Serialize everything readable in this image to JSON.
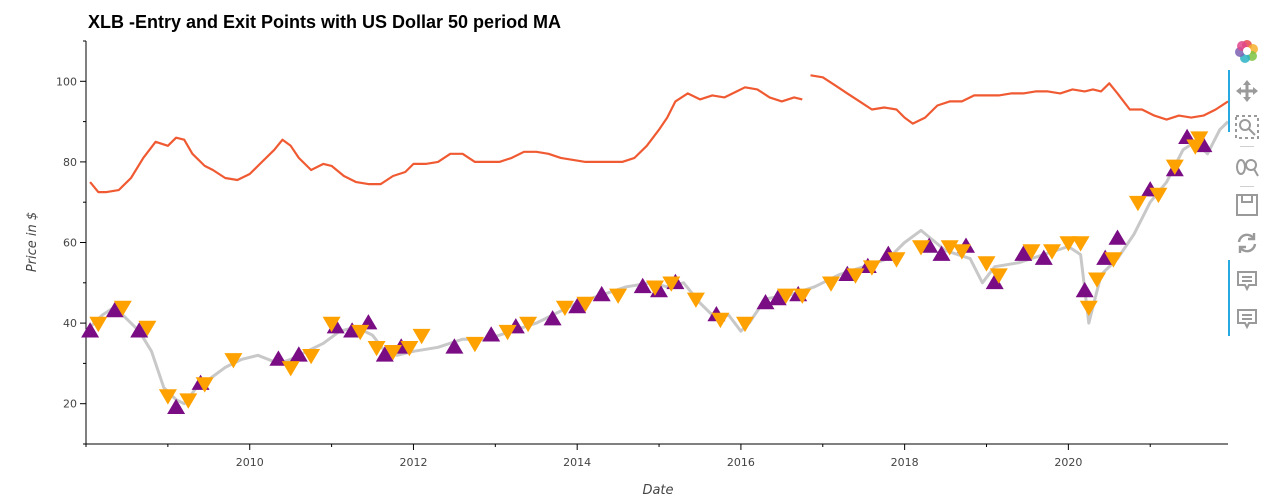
{
  "chart_data": {
    "type": "line",
    "title": "XLB -Entry and Exit Points with US Dollar 50 period MA",
    "xlabel": "Date",
    "ylabel": "Price in $",
    "xlim": [
      2008.0,
      2021.95
    ],
    "ylim": [
      10,
      110
    ],
    "x_ticks": [
      2010,
      2012,
      2014,
      2016,
      2018,
      2020
    ],
    "x_tick_labels": [
      "2010",
      "2012",
      "2014",
      "2016",
      "2018",
      "2020"
    ],
    "y_ticks": [
      20,
      40,
      60,
      80,
      100
    ],
    "y_tick_labels": [
      "20",
      "40",
      "60",
      "80",
      "100"
    ],
    "grid": false,
    "colors": {
      "price": "#c8c8c8",
      "ma": "#f05a32",
      "buy": "#7a0d84",
      "sell": "#ffa200"
    },
    "series": [
      {
        "kind": "price",
        "x": [
          2008.0,
          2008.2,
          2008.35,
          2008.5,
          2008.65,
          2008.8,
          2008.95,
          2009.1,
          2009.2,
          2009.35,
          2009.5,
          2009.7,
          2009.9,
          2010.1,
          2010.35,
          2010.5,
          2010.7,
          2010.9,
          2011.1,
          2011.3,
          2011.5,
          2011.65,
          2011.8,
          2012.0,
          2012.3,
          2012.6,
          2012.9,
          2013.2,
          2013.5,
          2013.8,
          2014.0,
          2014.3,
          2014.6,
          2014.9,
          2015.1,
          2015.3,
          2015.5,
          2015.7,
          2015.85,
          2016.0,
          2016.1,
          2016.3,
          2016.6,
          2016.9,
          2017.2,
          2017.5,
          2017.8,
          2018.0,
          2018.2,
          2018.5,
          2018.8,
          2018.95,
          2019.1,
          2019.4,
          2019.7,
          2020.0,
          2020.15,
          2020.25,
          2020.4,
          2020.6,
          2020.8,
          2021.0,
          2021.2,
          2021.4,
          2021.55,
          2021.7,
          2021.85,
          2021.95
        ],
        "y": [
          38,
          42,
          44,
          41,
          38,
          33,
          24,
          21,
          20,
          24,
          26,
          29,
          31,
          32,
          30,
          31,
          33,
          35,
          38,
          39,
          37,
          33,
          32,
          33,
          34,
          36,
          36,
          38,
          40,
          43,
          45,
          47,
          49,
          50,
          49,
          50,
          45,
          41,
          42,
          38,
          40,
          46,
          47,
          49,
          52,
          54,
          56,
          60,
          63,
          58,
          56,
          50,
          54,
          55,
          57,
          59,
          57,
          40,
          52,
          56,
          62,
          70,
          75,
          83,
          85,
          82,
          88,
          90
        ]
      },
      {
        "kind": "ma",
        "x": [
          2008.05,
          2008.15,
          2008.25,
          2008.4,
          2008.55,
          2008.7,
          2008.85,
          2009.0,
          2009.1,
          2009.2,
          2009.3,
          2009.45,
          2009.55,
          2009.7,
          2009.85,
          2010.0,
          2010.15,
          2010.3,
          2010.4,
          2010.5,
          2010.6,
          2010.75,
          2010.9,
          2011.0,
          2011.15,
          2011.3,
          2011.45,
          2011.6,
          2011.75,
          2011.9,
          2012.0,
          2012.15,
          2012.3,
          2012.45,
          2012.6,
          2012.75,
          2012.9,
          2013.05,
          2013.2,
          2013.35,
          2013.5,
          2013.65,
          2013.8,
          2013.95,
          2014.1,
          2014.25,
          2014.4,
          2014.55,
          2014.7,
          2014.85,
          2015.0,
          2015.1,
          2015.2,
          2015.35,
          2015.5,
          2015.65,
          2015.8,
          2015.95,
          2016.05,
          2016.2,
          2016.35,
          2016.5,
          2016.65,
          2016.75,
          null,
          2016.85,
          2017.0,
          2017.15,
          2017.3,
          2017.45,
          2017.6,
          2017.75,
          2017.9,
          2018.0,
          2018.1,
          2018.25,
          2018.4,
          2018.55,
          2018.7,
          2018.85,
          2019.0,
          2019.15,
          2019.3,
          2019.45,
          2019.6,
          2019.75,
          2019.9,
          2020.05,
          2020.2,
          2020.3,
          2020.4,
          2020.5,
          2020.6,
          2020.75,
          2020.9,
          2021.05,
          2021.2,
          2021.35,
          2021.5,
          2021.65,
          2021.8,
          2021.95
        ],
        "y": [
          75,
          72.5,
          72.5,
          73,
          76,
          81,
          85,
          84,
          86,
          85.5,
          82,
          79,
          78,
          76,
          75.5,
          77,
          80,
          83,
          85.5,
          84,
          81,
          78,
          79.5,
          79,
          76.5,
          75,
          74.5,
          74.5,
          76.5,
          77.5,
          79.5,
          79.5,
          80,
          82,
          82,
          80,
          80,
          80,
          81,
          82.5,
          82.5,
          82,
          81,
          80.5,
          80,
          80,
          80,
          80,
          81,
          84,
          88,
          91,
          95,
          97,
          95.5,
          96.5,
          96,
          97.5,
          98.5,
          98,
          96,
          95,
          96,
          95.5,
          null,
          101.5,
          101,
          99,
          97,
          95,
          93,
          93.5,
          93,
          91,
          89.5,
          91,
          94,
          95,
          95,
          96.5,
          96.5,
          96.5,
          97,
          97,
          97.5,
          97.5,
          97,
          98,
          97.5,
          98,
          97.5,
          99.5,
          97,
          93,
          93,
          91.5,
          90.5,
          91.5,
          91,
          91.5,
          93,
          95
        ]
      },
      {
        "kind": "buy",
        "x": [
          2008.05,
          2008.35,
          2008.65,
          2009.1,
          2009.4,
          2010.35,
          2010.6,
          2011.05,
          2011.25,
          2011.45,
          2011.65,
          2011.85,
          2012.5,
          2012.95,
          2013.25,
          2013.7,
          2014.0,
          2014.3,
          2014.8,
          2015.0,
          2015.2,
          2015.7,
          2016.3,
          2016.45,
          2016.7,
          2017.3,
          2017.55,
          2017.8,
          2018.3,
          2018.45,
          2018.75,
          2019.1,
          2019.45,
          2019.7,
          2020.2,
          2020.45,
          2020.6,
          2021.0,
          2021.3,
          2021.45,
          2021.65
        ],
        "y": [
          38,
          43,
          38,
          19,
          25,
          31,
          32,
          39,
          38,
          40,
          32,
          34,
          34,
          37,
          39,
          41,
          44,
          47,
          49,
          48,
          50,
          42,
          45,
          46,
          47,
          52,
          54,
          57,
          59,
          57,
          59,
          50,
          57,
          56,
          48,
          56,
          61,
          73,
          78,
          86,
          84
        ]
      },
      {
        "kind": "sell",
        "x": [
          2008.15,
          2008.45,
          2008.75,
          2009.0,
          2009.25,
          2009.45,
          2009.8,
          2010.5,
          2010.75,
          2011.0,
          2011.35,
          2011.55,
          2011.75,
          2011.95,
          2012.1,
          2012.75,
          2013.15,
          2013.4,
          2013.85,
          2014.1,
          2014.5,
          2014.95,
          2015.15,
          2015.45,
          2015.75,
          2016.05,
          2016.55,
          2016.75,
          2017.1,
          2017.4,
          2017.6,
          2017.9,
          2018.2,
          2018.55,
          2018.7,
          2019.0,
          2019.15,
          2019.55,
          2019.8,
          2020.0,
          2020.15,
          2020.25,
          2020.35,
          2020.55,
          2020.85,
          2021.1,
          2021.3,
          2021.55,
          2021.6
        ],
        "y": [
          40,
          44,
          39,
          22,
          21,
          25,
          31,
          29,
          32,
          40,
          38,
          34,
          33,
          34,
          37,
          35,
          38,
          40,
          44,
          45,
          47,
          49,
          50,
          46,
          41,
          40,
          47,
          47,
          50,
          52,
          54,
          56,
          59,
          59,
          58,
          55,
          52,
          58,
          58,
          60,
          60,
          44,
          51,
          56,
          70,
          72,
          79,
          84,
          86
        ]
      }
    ]
  },
  "toolbar": {
    "tools": [
      "bokeh-logo-icon",
      "pan-icon",
      "box-zoom-icon",
      "wheel-zoom-icon",
      "save-icon",
      "reset-icon",
      "hover-icon",
      "hover-icon-2"
    ]
  }
}
